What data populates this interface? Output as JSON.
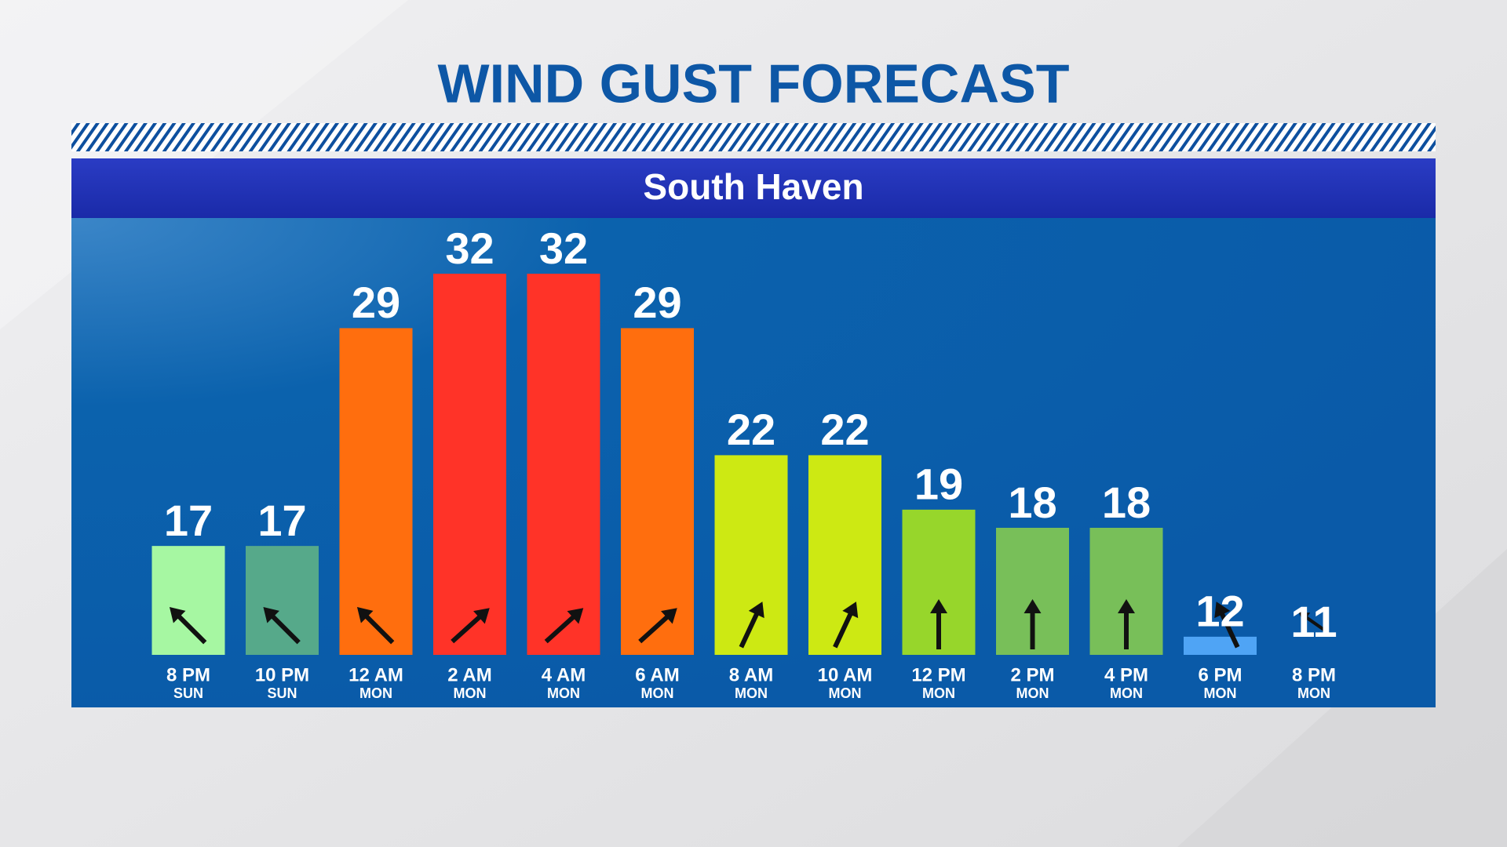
{
  "chart_data": {
    "type": "bar",
    "title": "WIND GUST FORECAST",
    "subtitle": "South Haven",
    "categories": [
      "8 PM",
      "10 PM",
      "12 AM",
      "2 AM",
      "4 AM",
      "6 AM",
      "8 AM",
      "10 AM",
      "12 PM",
      "2 PM",
      "4 PM",
      "6 PM",
      "8 PM"
    ],
    "category_days": [
      "SUN",
      "SUN",
      "MON",
      "MON",
      "MON",
      "MON",
      "MON",
      "MON",
      "MON",
      "MON",
      "MON",
      "MON",
      "MON"
    ],
    "values": [
      17,
      17,
      29,
      32,
      32,
      29,
      22,
      22,
      19,
      18,
      18,
      12,
      11
    ],
    "colors": [
      "#a6f7a2",
      "#56a98a",
      "#ff6e0e",
      "#ff3328",
      "#ff3328",
      "#ff6e0e",
      "#cde913",
      "#cde913",
      "#97d62b",
      "#78bf59",
      "#78bf59",
      "#4fa4f5",
      "#4fa4f5"
    ],
    "ylim": [
      11,
      32
    ]
  }
}
